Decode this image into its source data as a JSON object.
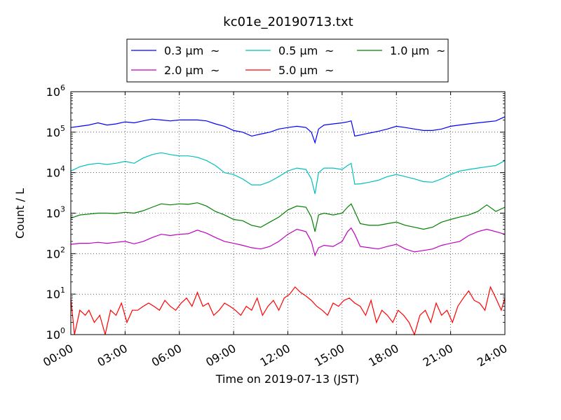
{
  "chart_data": {
    "type": "line",
    "title": "kc01e_20190713.txt",
    "xlabel": "Time on 2019-07-13 (JST)",
    "ylabel": "Count / L",
    "yscale": "log",
    "ylim": [
      1,
      1000000
    ],
    "xlim": [
      "00:00",
      "24:00"
    ],
    "x_ticks": [
      "00:00",
      "03:00",
      "06:00",
      "09:00",
      "12:00",
      "15:00",
      "18:00",
      "21:00",
      "24:00"
    ],
    "y_ticks": [
      {
        "base": "10",
        "exp": "0",
        "value": 1
      },
      {
        "base": "10",
        "exp": "1",
        "value": 10
      },
      {
        "base": "10",
        "exp": "2",
        "value": 100
      },
      {
        "base": "10",
        "exp": "3",
        "value": 1000
      },
      {
        "base": "10",
        "exp": "4",
        "value": 10000
      },
      {
        "base": "10",
        "exp": "5",
        "value": 100000
      },
      {
        "base": "10",
        "exp": "6",
        "value": 1000000
      }
    ],
    "grid": true,
    "legend_position": "top",
    "legend_suffix": "~",
    "series": [
      {
        "name": "0.3 μm",
        "color": "#0000ff",
        "points": [
          [
            0.0,
            130000
          ],
          [
            0.5,
            140000
          ],
          [
            1.0,
            150000
          ],
          [
            1.5,
            170000
          ],
          [
            2.0,
            150000
          ],
          [
            2.5,
            160000
          ],
          [
            3.0,
            180000
          ],
          [
            3.5,
            170000
          ],
          [
            4.0,
            190000
          ],
          [
            4.5,
            210000
          ],
          [
            5.0,
            200000
          ],
          [
            5.5,
            190000
          ],
          [
            6.0,
            200000
          ],
          [
            6.5,
            200000
          ],
          [
            7.0,
            200000
          ],
          [
            7.5,
            190000
          ],
          [
            8.0,
            160000
          ],
          [
            8.5,
            140000
          ],
          [
            9.0,
            110000
          ],
          [
            9.5,
            100000
          ],
          [
            10.0,
            80000
          ],
          [
            10.5,
            90000
          ],
          [
            11.0,
            100000
          ],
          [
            11.5,
            120000
          ],
          [
            12.0,
            130000
          ],
          [
            12.5,
            140000
          ],
          [
            13.0,
            130000
          ],
          [
            13.3,
            100000
          ],
          [
            13.5,
            55000
          ],
          [
            13.7,
            120000
          ],
          [
            14.0,
            150000
          ],
          [
            14.5,
            160000
          ],
          [
            15.0,
            170000
          ],
          [
            15.3,
            180000
          ],
          [
            15.5,
            190000
          ],
          [
            15.7,
            80000
          ],
          [
            16.0,
            85000
          ],
          [
            16.5,
            95000
          ],
          [
            17.0,
            105000
          ],
          [
            17.5,
            120000
          ],
          [
            18.0,
            140000
          ],
          [
            18.5,
            130000
          ],
          [
            19.0,
            120000
          ],
          [
            19.5,
            110000
          ],
          [
            20.0,
            110000
          ],
          [
            20.5,
            120000
          ],
          [
            21.0,
            140000
          ],
          [
            21.5,
            150000
          ],
          [
            22.0,
            160000
          ],
          [
            22.5,
            170000
          ],
          [
            23.0,
            180000
          ],
          [
            23.5,
            190000
          ],
          [
            24.0,
            240000
          ]
        ]
      },
      {
        "name": "0.5 μm",
        "color": "#00bfbf",
        "points": [
          [
            0.0,
            11000
          ],
          [
            0.5,
            14000
          ],
          [
            1.0,
            16000
          ],
          [
            1.5,
            17000
          ],
          [
            2.0,
            16000
          ],
          [
            2.5,
            17000
          ],
          [
            3.0,
            19000
          ],
          [
            3.5,
            17000
          ],
          [
            4.0,
            23000
          ],
          [
            4.5,
            28000
          ],
          [
            5.0,
            31000
          ],
          [
            5.5,
            28000
          ],
          [
            6.0,
            26000
          ],
          [
            6.5,
            26000
          ],
          [
            7.0,
            24000
          ],
          [
            7.5,
            20000
          ],
          [
            8.0,
            15000
          ],
          [
            8.5,
            10000
          ],
          [
            9.0,
            9000
          ],
          [
            9.5,
            7000
          ],
          [
            10.0,
            5000
          ],
          [
            10.5,
            5000
          ],
          [
            11.0,
            6000
          ],
          [
            11.5,
            8000
          ],
          [
            12.0,
            11000
          ],
          [
            12.5,
            13000
          ],
          [
            13.0,
            12000
          ],
          [
            13.3,
            7000
          ],
          [
            13.5,
            3000
          ],
          [
            13.7,
            10000
          ],
          [
            14.0,
            13000
          ],
          [
            14.5,
            13000
          ],
          [
            15.0,
            12000
          ],
          [
            15.3,
            15000
          ],
          [
            15.5,
            17000
          ],
          [
            15.7,
            5200
          ],
          [
            16.0,
            5300
          ],
          [
            16.5,
            5800
          ],
          [
            17.0,
            6500
          ],
          [
            17.5,
            8000
          ],
          [
            18.0,
            9000
          ],
          [
            18.5,
            8000
          ],
          [
            19.0,
            7000
          ],
          [
            19.5,
            6000
          ],
          [
            20.0,
            5800
          ],
          [
            20.5,
            7000
          ],
          [
            21.0,
            9000
          ],
          [
            21.5,
            11000
          ],
          [
            22.0,
            12000
          ],
          [
            22.5,
            13000
          ],
          [
            23.0,
            14000
          ],
          [
            23.5,
            15000
          ],
          [
            24.0,
            20000
          ]
        ]
      },
      {
        "name": "1.0 μm",
        "color": "#008000",
        "points": [
          [
            0.0,
            750
          ],
          [
            0.5,
            900
          ],
          [
            1.0,
            950
          ],
          [
            1.5,
            1000
          ],
          [
            2.0,
            1000
          ],
          [
            2.5,
            980
          ],
          [
            3.0,
            1050
          ],
          [
            3.5,
            1000
          ],
          [
            4.0,
            1150
          ],
          [
            4.5,
            1400
          ],
          [
            5.0,
            1700
          ],
          [
            5.5,
            1600
          ],
          [
            6.0,
            1700
          ],
          [
            6.5,
            1650
          ],
          [
            7.0,
            1800
          ],
          [
            7.5,
            1500
          ],
          [
            8.0,
            1100
          ],
          [
            8.5,
            900
          ],
          [
            9.0,
            700
          ],
          [
            9.5,
            650
          ],
          [
            10.0,
            500
          ],
          [
            10.5,
            450
          ],
          [
            11.0,
            600
          ],
          [
            11.5,
            800
          ],
          [
            12.0,
            1200
          ],
          [
            12.5,
            1500
          ],
          [
            13.0,
            1400
          ],
          [
            13.3,
            800
          ],
          [
            13.5,
            350
          ],
          [
            13.7,
            900
          ],
          [
            14.0,
            1000
          ],
          [
            14.5,
            900
          ],
          [
            15.0,
            1000
          ],
          [
            15.3,
            1400
          ],
          [
            15.5,
            1700
          ],
          [
            15.7,
            1100
          ],
          [
            16.0,
            550
          ],
          [
            16.5,
            500
          ],
          [
            17.0,
            500
          ],
          [
            17.5,
            550
          ],
          [
            18.0,
            600
          ],
          [
            18.5,
            500
          ],
          [
            19.0,
            450
          ],
          [
            19.5,
            400
          ],
          [
            20.0,
            450
          ],
          [
            20.5,
            600
          ],
          [
            21.0,
            700
          ],
          [
            21.5,
            800
          ],
          [
            22.0,
            900
          ],
          [
            22.5,
            1100
          ],
          [
            23.0,
            1600
          ],
          [
            23.5,
            1100
          ],
          [
            24.0,
            1400
          ]
        ]
      },
      {
        "name": "2.0 μm",
        "color": "#bf00bf",
        "points": [
          [
            0.0,
            170
          ],
          [
            0.5,
            180
          ],
          [
            1.0,
            180
          ],
          [
            1.5,
            190
          ],
          [
            2.0,
            180
          ],
          [
            2.5,
            190
          ],
          [
            3.0,
            200
          ],
          [
            3.5,
            175
          ],
          [
            4.0,
            200
          ],
          [
            4.5,
            250
          ],
          [
            5.0,
            300
          ],
          [
            5.5,
            280
          ],
          [
            6.0,
            300
          ],
          [
            6.5,
            310
          ],
          [
            7.0,
            380
          ],
          [
            7.5,
            320
          ],
          [
            8.0,
            250
          ],
          [
            8.5,
            200
          ],
          [
            9.0,
            180
          ],
          [
            9.5,
            160
          ],
          [
            10.0,
            140
          ],
          [
            10.5,
            130
          ],
          [
            11.0,
            150
          ],
          [
            11.5,
            200
          ],
          [
            12.0,
            300
          ],
          [
            12.5,
            400
          ],
          [
            13.0,
            350
          ],
          [
            13.3,
            200
          ],
          [
            13.5,
            90
          ],
          [
            13.7,
            140
          ],
          [
            14.0,
            160
          ],
          [
            14.5,
            150
          ],
          [
            15.0,
            200
          ],
          [
            15.3,
            350
          ],
          [
            15.5,
            430
          ],
          [
            15.7,
            300
          ],
          [
            16.0,
            150
          ],
          [
            16.5,
            140
          ],
          [
            17.0,
            130
          ],
          [
            17.5,
            150
          ],
          [
            18.0,
            170
          ],
          [
            18.5,
            130
          ],
          [
            19.0,
            110
          ],
          [
            19.5,
            120
          ],
          [
            20.0,
            130
          ],
          [
            20.5,
            160
          ],
          [
            21.0,
            180
          ],
          [
            21.5,
            200
          ],
          [
            22.0,
            280
          ],
          [
            22.5,
            350
          ],
          [
            23.0,
            400
          ],
          [
            23.5,
            350
          ],
          [
            24.0,
            300
          ]
        ]
      },
      {
        "name": "5.0 μm",
        "color": "#ff0000",
        "points": [
          [
            0.0,
            8
          ],
          [
            0.2,
            1
          ],
          [
            0.5,
            4
          ],
          [
            0.8,
            3
          ],
          [
            1.0,
            4
          ],
          [
            1.3,
            2
          ],
          [
            1.6,
            3
          ],
          [
            1.9,
            1
          ],
          [
            2.2,
            4
          ],
          [
            2.5,
            3
          ],
          [
            2.8,
            6
          ],
          [
            3.1,
            2
          ],
          [
            3.4,
            4
          ],
          [
            3.7,
            4
          ],
          [
            4.0,
            5
          ],
          [
            4.3,
            6
          ],
          [
            4.6,
            5
          ],
          [
            4.9,
            4
          ],
          [
            5.2,
            7
          ],
          [
            5.5,
            5
          ],
          [
            5.8,
            4
          ],
          [
            6.1,
            6
          ],
          [
            6.4,
            8
          ],
          [
            6.7,
            5
          ],
          [
            7.0,
            11
          ],
          [
            7.3,
            5
          ],
          [
            7.6,
            6
          ],
          [
            7.9,
            3
          ],
          [
            8.2,
            4
          ],
          [
            8.5,
            6
          ],
          [
            8.8,
            5
          ],
          [
            9.1,
            4
          ],
          [
            9.4,
            3
          ],
          [
            9.7,
            5
          ],
          [
            10.0,
            4
          ],
          [
            10.3,
            8
          ],
          [
            10.6,
            3
          ],
          [
            10.9,
            5
          ],
          [
            11.2,
            7
          ],
          [
            11.5,
            4
          ],
          [
            11.8,
            8
          ],
          [
            12.1,
            10
          ],
          [
            12.4,
            15
          ],
          [
            12.7,
            11
          ],
          [
            13.0,
            9
          ],
          [
            13.3,
            7
          ],
          [
            13.6,
            5
          ],
          [
            13.9,
            4
          ],
          [
            14.2,
            3
          ],
          [
            14.5,
            6
          ],
          [
            14.8,
            5
          ],
          [
            15.1,
            7
          ],
          [
            15.4,
            8
          ],
          [
            15.7,
            6
          ],
          [
            16.0,
            5
          ],
          [
            16.3,
            3
          ],
          [
            16.6,
            7
          ],
          [
            16.9,
            2
          ],
          [
            17.2,
            4
          ],
          [
            17.5,
            3
          ],
          [
            17.8,
            2
          ],
          [
            18.1,
            4
          ],
          [
            18.4,
            3
          ],
          [
            18.7,
            2
          ],
          [
            19.0,
            1
          ],
          [
            19.3,
            3
          ],
          [
            19.6,
            4
          ],
          [
            19.9,
            2
          ],
          [
            20.2,
            6
          ],
          [
            20.5,
            3
          ],
          [
            20.8,
            4
          ],
          [
            21.1,
            2
          ],
          [
            21.4,
            5
          ],
          [
            21.7,
            8
          ],
          [
            22.0,
            12
          ],
          [
            22.3,
            7
          ],
          [
            22.6,
            6
          ],
          [
            22.9,
            4
          ],
          [
            23.2,
            15
          ],
          [
            23.5,
            8
          ],
          [
            23.8,
            4
          ],
          [
            24.0,
            8
          ]
        ]
      }
    ]
  }
}
